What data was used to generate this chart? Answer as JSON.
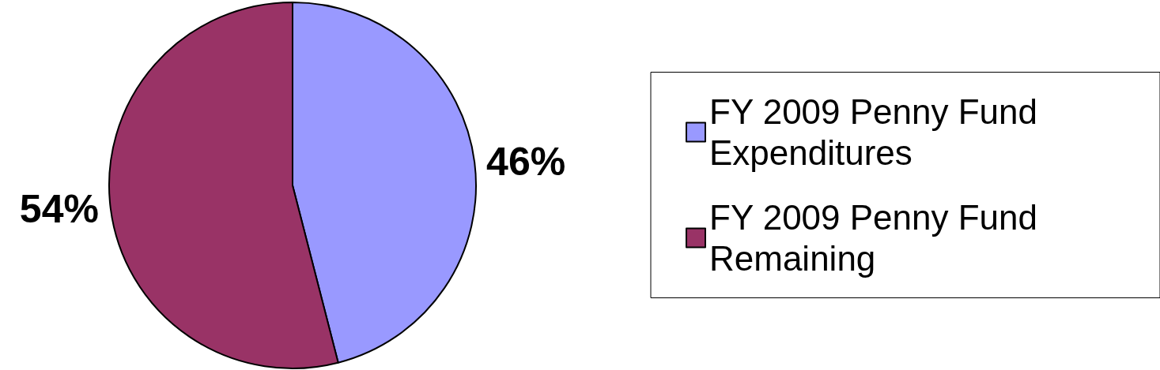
{
  "chart_data": {
    "type": "pie",
    "categories": [
      "FY 2009 Penny Fund Expenditures",
      "FY 2009 Penny Fund Remaining"
    ],
    "values": [
      46,
      54
    ],
    "colors": [
      "#9999ff",
      "#993366"
    ],
    "value_labels": [
      "46%",
      "54%"
    ],
    "legend": "right"
  }
}
